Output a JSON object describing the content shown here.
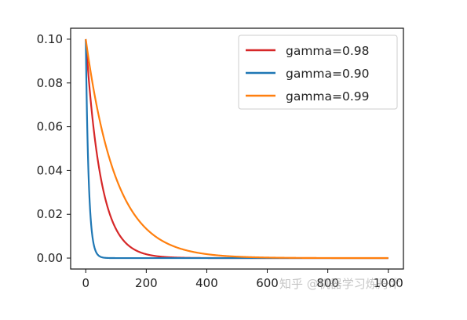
{
  "chart_data": {
    "type": "line",
    "title": "",
    "xlabel": "",
    "ylabel": "",
    "xlim": [
      -50,
      1050
    ],
    "ylim": [
      -0.005,
      0.105
    ],
    "x_ticks": [
      0,
      200,
      400,
      600,
      800,
      1000
    ],
    "x_tick_labels": [
      "0",
      "200",
      "400",
      "600",
      "800",
      "1000"
    ],
    "y_ticks": [
      0.0,
      0.02,
      0.04,
      0.06,
      0.08,
      0.1
    ],
    "y_tick_labels": [
      "0.00",
      "0.02",
      "0.04",
      "0.06",
      "0.08",
      "0.10"
    ],
    "x_range": [
      0,
      1000
    ],
    "initial_value": 0.1,
    "grid": false,
    "legend_position": "upper-right",
    "series": [
      {
        "name": "gamma=0.98",
        "gamma": 0.98,
        "color": "#d62728"
      },
      {
        "name": "gamma=0.90",
        "gamma": 0.9,
        "color": "#1f77b4"
      },
      {
        "name": "gamma=0.99",
        "gamma": 0.99,
        "color": "#ff7f0e"
      }
    ]
  },
  "watermark": "知乎 @机器学习炼丹术"
}
